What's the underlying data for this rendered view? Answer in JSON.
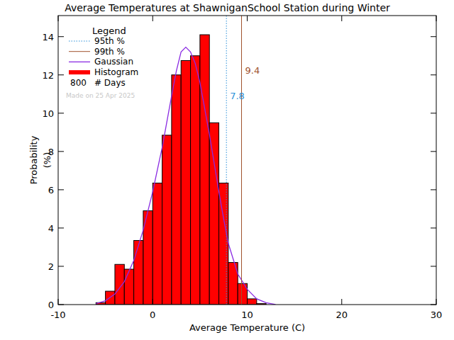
{
  "chart_data": {
    "type": "histogram",
    "title": "Average Temperatures at ShawniganSchool Station during Winter",
    "x_label": "Average Temperature (C)",
    "y_label": "Probability (%)",
    "bins": [
      -6,
      -5,
      -4,
      -3,
      -2,
      -1,
      0,
      1,
      2,
      3,
      4,
      5,
      6,
      7,
      8,
      9,
      10,
      11,
      12
    ],
    "values": [
      0.1,
      0.7,
      2.1,
      1.85,
      3.35,
      4.9,
      6.35,
      8.85,
      12.0,
      12.75,
      13.0,
      14.1,
      9.5,
      6.35,
      2.2,
      1.1,
      0.3,
      0.05
    ],
    "color": "#ff0000",
    "histogram_name": "Histogram",
    "series": [
      {
        "name": "Gaussian",
        "type": "line",
        "color": "#8a2be2",
        "x": [
          -6,
          -5,
          -4,
          -3,
          -2,
          -1,
          0,
          1,
          2,
          2.5,
          3,
          3.5,
          4,
          4.5,
          5,
          6,
          7,
          7.5,
          8,
          9,
          10,
          11,
          12,
          13
        ],
        "values": [
          0.05,
          0.2,
          0.55,
          1.2,
          2.3,
          3.9,
          5.9,
          8.2,
          10.9,
          12.2,
          13.2,
          13.45,
          13.2,
          12.6,
          11.6,
          8.9,
          5.9,
          4.5,
          3.2,
          1.6,
          0.8,
          0.3,
          0.1,
          0.0
        ]
      }
    ],
    "percentiles": [
      {
        "name": "95th %",
        "value": 7.8,
        "color": "#2a8fd8",
        "line_style": "dotted"
      },
      {
        "name": "99th %",
        "value": 9.4,
        "color": "#a0522d",
        "line_style": "solid"
      }
    ],
    "legend_title": "Legend",
    "days": 800,
    "days_label": "# Days",
    "note": "Made on 25 Apr 2025",
    "xlim": [
      -10,
      30
    ],
    "ylim": [
      0,
      15.1
    ],
    "xticks": [
      -10,
      0,
      10,
      20,
      30
    ],
    "yticks": [
      0,
      2,
      4,
      6,
      8,
      10,
      12,
      14
    ],
    "legend": "top-left"
  }
}
